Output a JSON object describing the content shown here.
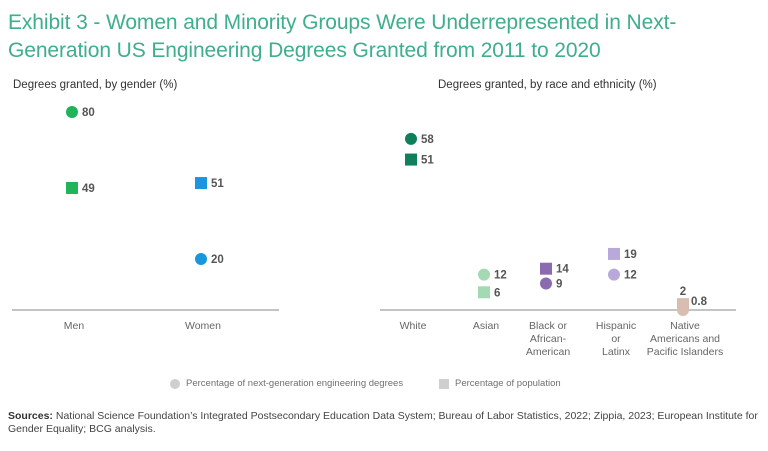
{
  "title": "Exhibit 3 - Women and Minority Groups Were Underrepresented in Next-Generation US Engineering Degrees Granted from 2011 to 2020",
  "chart_data": [
    {
      "type": "scatter",
      "title": "Degrees granted, by gender (%)",
      "categories": [
        "Men",
        "Women"
      ],
      "colors": [
        "#20b35a",
        "#1a97dc"
      ],
      "series": [
        {
          "name": "Percentage of next-generation engineering degrees",
          "marker": "circle",
          "values": [
            80,
            20
          ],
          "labels": [
            "80",
            "20"
          ]
        },
        {
          "name": "Percentage of population",
          "marker": "square",
          "values": [
            49,
            51
          ],
          "labels": [
            "49",
            "51"
          ]
        }
      ],
      "ylim": [
        0,
        80
      ],
      "grid": false
    },
    {
      "type": "scatter",
      "title": "Degrees granted, by race and ethnicity (%)",
      "categories": [
        "White",
        "Asian",
        "Black or African-American",
        "Hispanic or Latinx",
        "Native Americans and Pacific Islanders"
      ],
      "category_lines": [
        [
          "White"
        ],
        [
          "Asian"
        ],
        [
          "Black or",
          "African-",
          "American"
        ],
        [
          "Hispanic",
          "or",
          "Latinx"
        ],
        [
          "Native",
          "Americans and",
          "Pacific Islanders"
        ]
      ],
      "colors": [
        "#0e7f5c",
        "#a4d9b4",
        "#8a6bb0",
        "#b9a9da",
        "#d8bdb1"
      ],
      "series": [
        {
          "name": "Percentage of next-generation engineering degrees",
          "marker": "circle",
          "values": [
            58,
            12,
            9,
            12,
            0.8
          ],
          "labels": [
            "58",
            "12",
            "9",
            "12",
            "0.8"
          ]
        },
        {
          "name": "Percentage of population",
          "marker": "square",
          "values": [
            51,
            6,
            14,
            19,
            2
          ],
          "labels": [
            "51",
            "6",
            "14",
            "19",
            "2"
          ]
        }
      ],
      "ylim": [
        0,
        60
      ],
      "grid": false
    }
  ],
  "legend": {
    "degrees": "Percentage of next-generation engineering degrees",
    "population": "Percentage of population",
    "position": "bottom"
  },
  "sources": {
    "label": "Sources:",
    "text": " National Science Foundation’s Integrated Postsecondary Education Data System; Bureau of Labor Statistics, 2022; Zippia, 2023; European Institute for Gender Equality; BCG analysis."
  }
}
